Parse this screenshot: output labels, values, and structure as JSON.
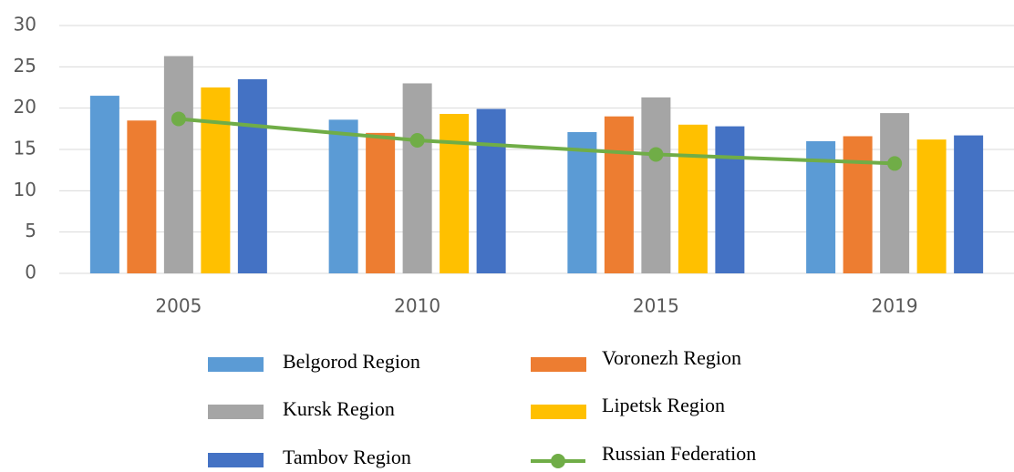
{
  "chart_data": {
    "type": "bar",
    "categories": [
      "2005",
      "2010",
      "2015",
      "2019"
    ],
    "series": [
      {
        "name": "Belgorod Region",
        "color": "#5b9bd5",
        "values": [
          21.5,
          18.6,
          17.1,
          16.0
        ]
      },
      {
        "name": "Voronezh Region",
        "color": "#ed7d31",
        "values": [
          18.5,
          17.0,
          19.0,
          16.6
        ]
      },
      {
        "name": "Kursk Region",
        "color": "#a5a5a5",
        "values": [
          26.3,
          23.0,
          21.3,
          19.4
        ]
      },
      {
        "name": "Lipetsk Region",
        "color": "#ffc000",
        "values": [
          22.5,
          19.3,
          18.0,
          16.2
        ]
      },
      {
        "name": "Tambov Region",
        "color": "#4472c4",
        "values": [
          23.5,
          19.9,
          17.8,
          16.7
        ]
      },
      {
        "name": "Russian Federation",
        "color": "#70ad47",
        "type": "line",
        "values": [
          18.7,
          16.1,
          14.4,
          13.3
        ]
      }
    ],
    "ylim": [
      0,
      30
    ],
    "yticks": [
      0,
      5,
      10,
      15,
      20,
      25,
      30
    ],
    "grid": true
  }
}
